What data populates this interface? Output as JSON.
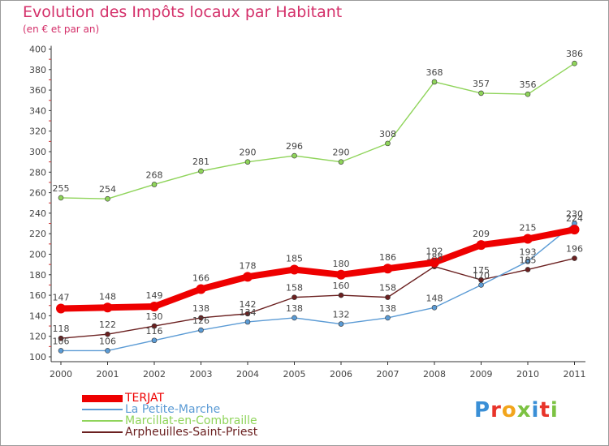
{
  "title": "Evolution des Impôts locaux par Habitant",
  "subtitle": "(en € et par an)",
  "logo": {
    "text": "Proxiti",
    "colors": [
      "#3a8fd6",
      "#e8342a",
      "#f2a51c",
      "#7cc242",
      "#3a8fd6",
      "#e8342a",
      "#7cc242"
    ]
  },
  "chart_data": {
    "type": "line",
    "title": "Evolution des Impôts locaux par Habitant",
    "subtitle": "(en € et par an)",
    "xlabel": "",
    "ylabel": "",
    "ylim": [
      100,
      400
    ],
    "ytick_step": 20,
    "grid": false,
    "x": [
      "2000",
      "2001",
      "2002",
      "2003",
      "2004",
      "2005",
      "2006",
      "2007",
      "2008",
      "2009",
      "2010",
      "2011"
    ],
    "series": [
      {
        "name": "TERJAT",
        "color": "#ee0000",
        "values": [
          147,
          148,
          149,
          166,
          178,
          185,
          180,
          186,
          192,
          209,
          215,
          224
        ]
      },
      {
        "name": "La Petite-Marche",
        "color": "#5b9bd5",
        "values": [
          106,
          106,
          116,
          126,
          134,
          138,
          132,
          138,
          148,
          170,
          193,
          230
        ]
      },
      {
        "name": "Marcillat-en-Combraille",
        "color": "#8fd45a",
        "values": [
          255,
          254,
          268,
          281,
          290,
          296,
          290,
          308,
          368,
          357,
          356,
          386
        ]
      },
      {
        "name": "Arpheuilles-Saint-Priest",
        "color": "#6b2020",
        "values": [
          118,
          122,
          130,
          138,
          142,
          158,
          160,
          158,
          188,
          175,
          185,
          196
        ]
      }
    ],
    "legend_position": "bottom-left"
  }
}
